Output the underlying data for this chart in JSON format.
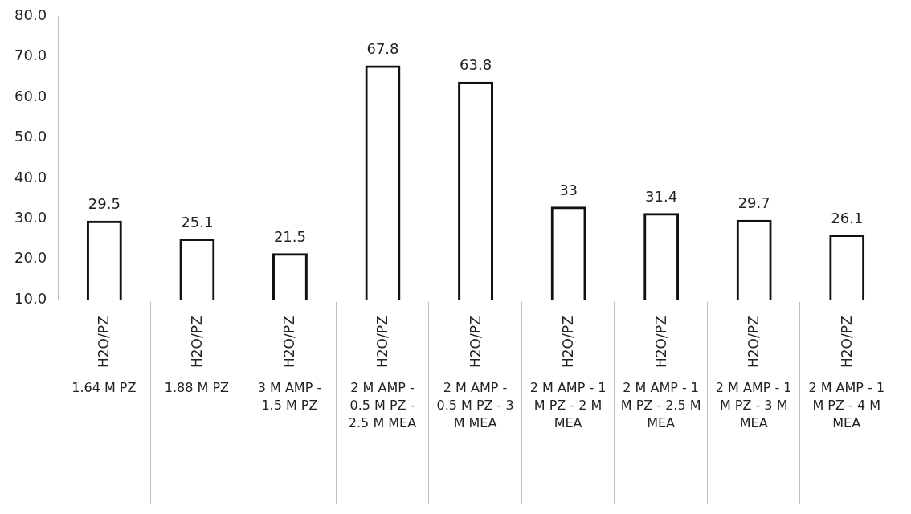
{
  "chart_data": {
    "type": "bar",
    "categories": [
      "H2O/PZ\n1.64 M PZ",
      "H2O/PZ\n1.88 M PZ",
      "H2O/PZ\n3 M AMP - 1.5 M PZ",
      "H2O/PZ\n2 M AMP - 0.5 M PZ - 2.5 M MEA",
      "H2O/PZ\n2 M AMP - 0.5 M PZ - 3 M MEA",
      "H2O/PZ\n2 M AMP - 1 M PZ - 2 M MEA",
      "H2O/PZ\n2 M AMP - 1 M PZ - 2.5 M MEA",
      "H2O/PZ\n2 M AMP - 1 M PZ - 3 M MEA",
      "H2O/PZ\n2 M AMP - 1 M PZ - 4 M MEA"
    ],
    "values": [
      29.5,
      25.1,
      21.5,
      67.8,
      63.8,
      33,
      31.4,
      29.7,
      26.1
    ],
    "color": "#111111",
    "ylim": [
      10,
      80
    ],
    "yticks": [
      {
        "value": 10,
        "label": "10.0"
      },
      {
        "value": 20,
        "label": "20.0"
      },
      {
        "value": 30,
        "label": "30.0"
      },
      {
        "value": 40,
        "label": "40.0"
      },
      {
        "value": 50,
        "label": "50.0"
      },
      {
        "value": 60,
        "label": "60.0"
      },
      {
        "value": 70,
        "label": "70.0"
      },
      {
        "value": 80,
        "label": "80.0"
      }
    ],
    "grid": false,
    "legend": false,
    "data_labels": true
  }
}
